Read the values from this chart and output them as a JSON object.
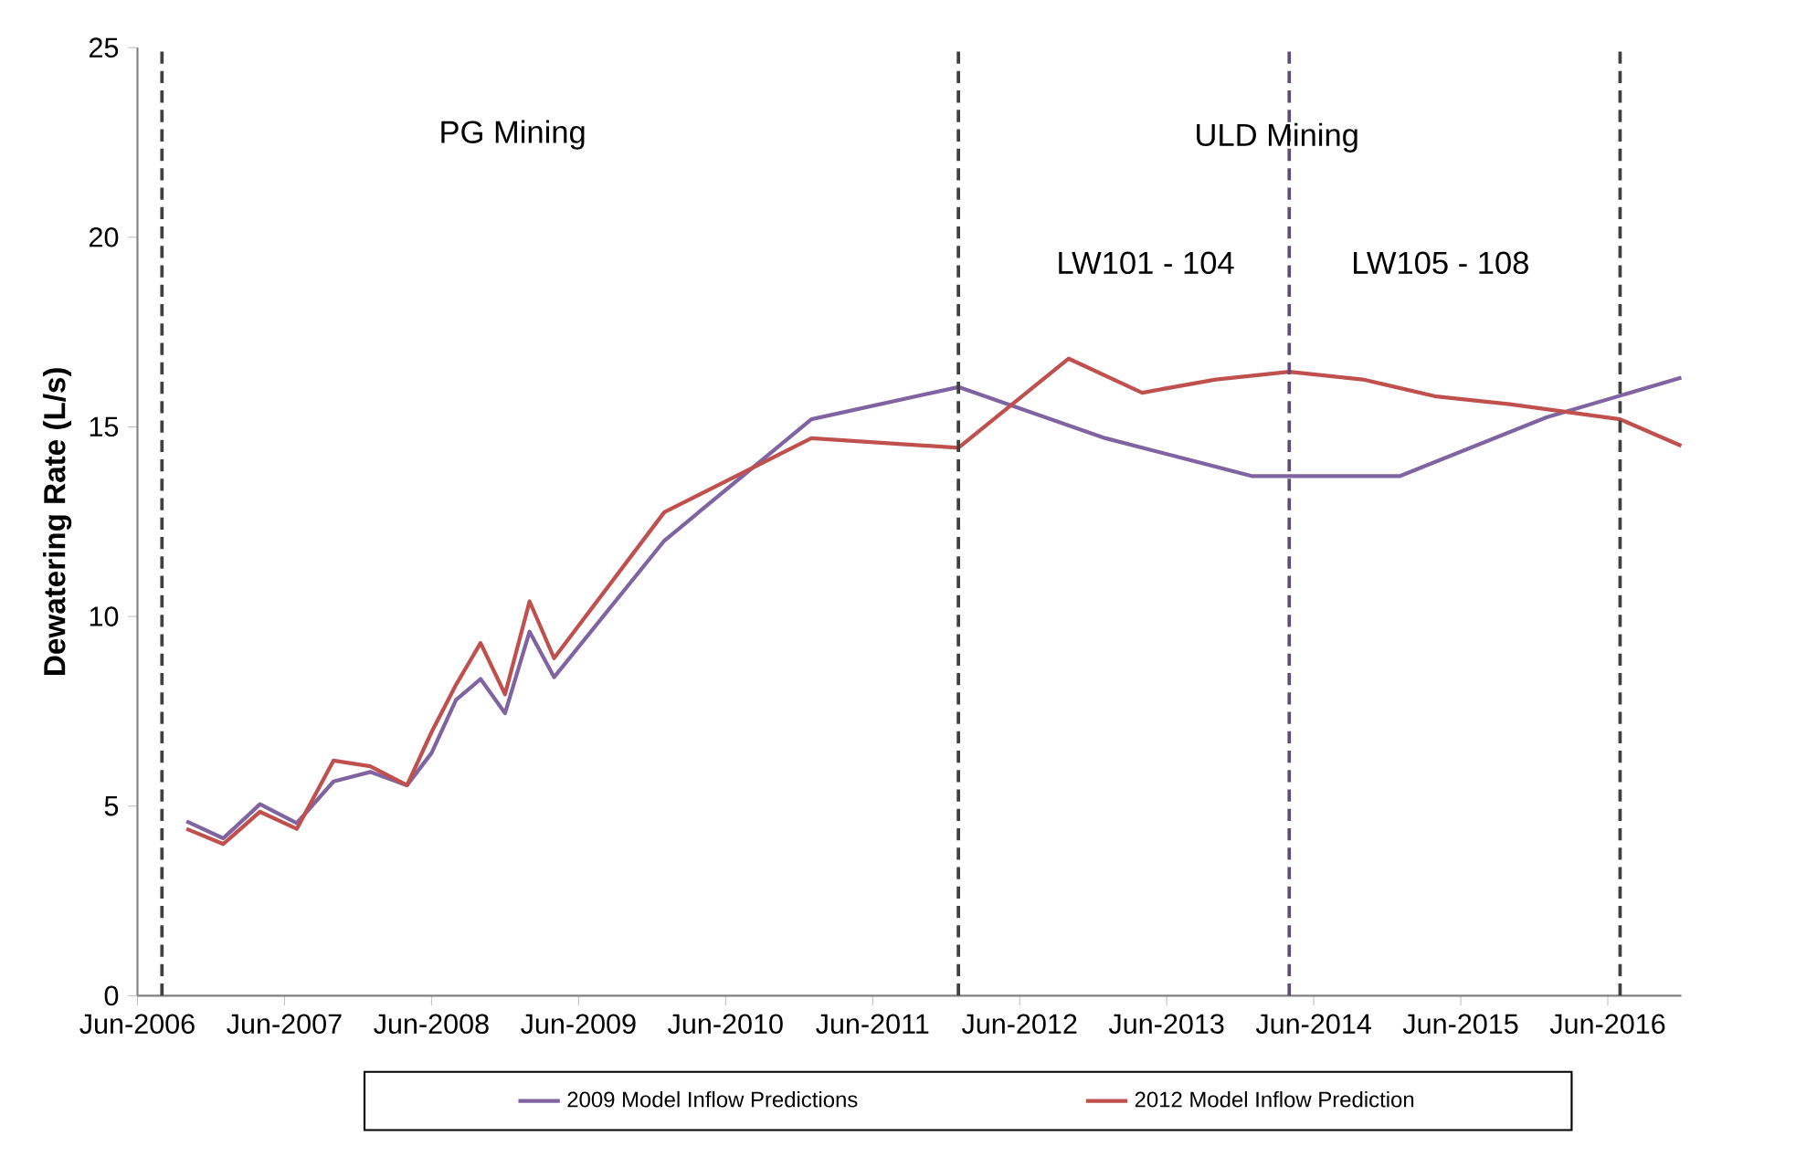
{
  "chart_data": {
    "type": "line",
    "ylabel": "Dewatering Rate (L/s)",
    "xlim": [
      "2006-06",
      "2016-12"
    ],
    "ylim": [
      0,
      25
    ],
    "xticks": [
      {
        "value": "2006-06",
        "label": "Jun-2006"
      },
      {
        "value": "2007-06",
        "label": "Jun-2007"
      },
      {
        "value": "2008-06",
        "label": "Jun-2008"
      },
      {
        "value": "2009-06",
        "label": "Jun-2009"
      },
      {
        "value": "2010-06",
        "label": "Jun-2010"
      },
      {
        "value": "2011-06",
        "label": "Jun-2011"
      },
      {
        "value": "2012-06",
        "label": "Jun-2012"
      },
      {
        "value": "2013-06",
        "label": "Jun-2013"
      },
      {
        "value": "2014-06",
        "label": "Jun-2014"
      },
      {
        "value": "2015-06",
        "label": "Jun-2015"
      },
      {
        "value": "2016-06",
        "label": "Jun-2016"
      }
    ],
    "yticks": [
      0,
      5,
      10,
      15,
      20,
      25
    ],
    "legend": "bottom",
    "grid": false,
    "marker": "none",
    "line_style": "solid",
    "series": [
      {
        "name": "2009 Model Inflow Predictions",
        "color": "#8064a2",
        "x": [
          "2006-10",
          "2007-01",
          "2007-04",
          "2007-07",
          "2007-10",
          "2008-01",
          "2008-04",
          "2008-06",
          "2008-08",
          "2008-10",
          "2008-12",
          "2009-02",
          "2009-04",
          "2010-01",
          "2011-01",
          "2012-01",
          "2013-01",
          "2014-01",
          "2015-01",
          "2016-01",
          "2016-12"
        ],
        "values": [
          4.6,
          4.15,
          5.05,
          4.55,
          5.65,
          5.9,
          5.55,
          6.4,
          7.8,
          8.35,
          7.45,
          9.6,
          8.4,
          12.0,
          15.2,
          16.05,
          14.7,
          13.7,
          13.7,
          15.25,
          16.3
        ]
      },
      {
        "name": "2012 Model Inflow Prediction",
        "color": "#c0504d",
        "x": [
          "2006-10",
          "2007-01",
          "2007-04",
          "2007-07",
          "2007-10",
          "2008-01",
          "2008-04",
          "2008-06",
          "2008-08",
          "2008-10",
          "2008-12",
          "2009-02",
          "2009-04",
          "2010-01",
          "2011-01",
          "2012-01",
          "2012-10",
          "2013-04",
          "2013-10",
          "2014-04",
          "2014-10",
          "2015-04",
          "2015-10",
          "2016-07",
          "2016-12"
        ],
        "values": [
          4.4,
          4.0,
          4.85,
          4.4,
          6.2,
          6.05,
          5.55,
          6.95,
          8.2,
          9.3,
          7.95,
          10.4,
          8.9,
          12.75,
          14.7,
          14.45,
          16.8,
          15.9,
          16.25,
          16.45,
          16.25,
          15.8,
          15.6,
          15.2,
          14.5
        ]
      }
    ],
    "ref_lines": [
      {
        "axis": "x",
        "value": "2006-08",
        "color": "#404040",
        "line_style": "dashed"
      },
      {
        "axis": "x",
        "value": "2012-01",
        "color": "#404040",
        "line_style": "dashed"
      },
      {
        "axis": "x",
        "value": "2014-04",
        "color": "#604a7b",
        "line_style": "dashed"
      },
      {
        "axis": "x",
        "value": "2016-07",
        "color": "#404040",
        "line_style": "dashed"
      }
    ],
    "annotations": [
      "PG Mining",
      "ULD Mining",
      "LW101 - 104",
      "LW105 - 108"
    ]
  }
}
